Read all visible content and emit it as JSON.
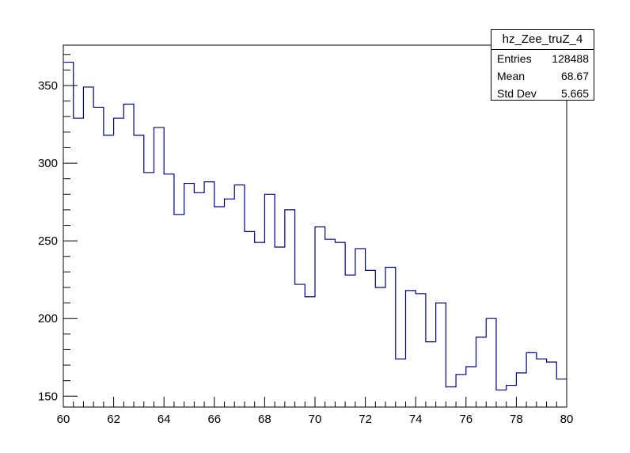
{
  "stats": {
    "title": "hz_Zee_truZ_4",
    "entries_label": "Entries",
    "entries_value": "128488",
    "mean_label": "Mean",
    "mean_value": "68.67",
    "stddev_label": "Std Dev",
    "stddev_value": "5.665"
  },
  "chart_data": {
    "type": "bar",
    "histogram": true,
    "title": "",
    "xlabel": "",
    "ylabel": "",
    "xlim": [
      60,
      80
    ],
    "ylim": [
      143,
      376
    ],
    "x_ticks": [
      60,
      62,
      64,
      66,
      68,
      70,
      72,
      74,
      76,
      78,
      80
    ],
    "y_ticks": [
      150,
      200,
      250,
      300,
      350
    ],
    "line_color": "#000080",
    "grid": false,
    "bin_edges_start": 60,
    "bin_width": 0.4,
    "values": [
      365,
      329,
      349,
      336,
      318,
      329,
      338,
      318,
      294,
      323,
      293,
      267,
      287,
      281,
      288,
      272,
      277,
      286,
      256,
      249,
      280,
      246,
      270,
      222,
      214,
      259,
      251,
      249,
      228,
      245,
      231,
      220,
      233,
      174,
      218,
      216,
      185,
      210,
      156,
      164,
      169,
      188,
      200,
      154,
      157,
      165,
      178,
      174,
      172,
      161
    ]
  }
}
